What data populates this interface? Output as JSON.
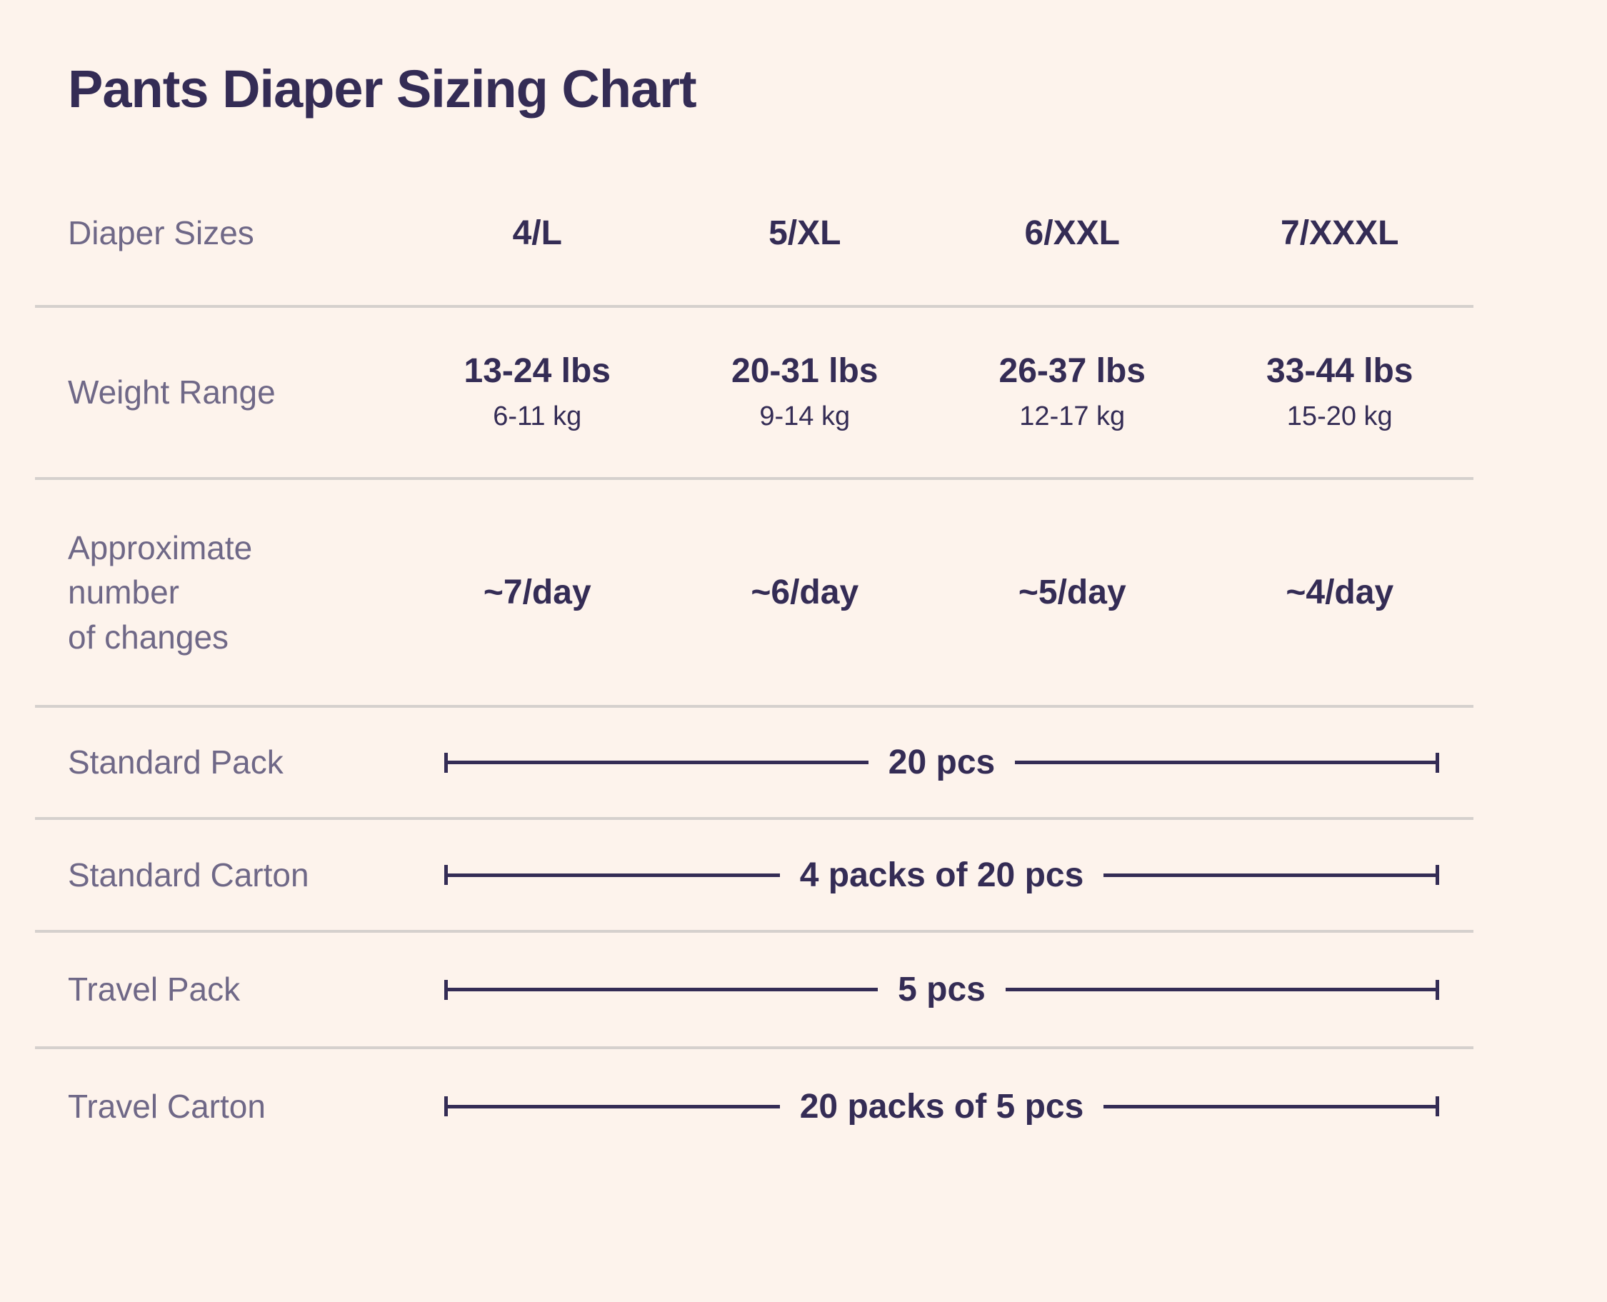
{
  "page": {
    "title": "Pants Diaper Sizing Chart"
  },
  "colors": {
    "background": "#FDF3EC",
    "primary_text": "#342C55",
    "label_text": "#6F6887",
    "divider": "#D5D0CD",
    "dimension_line": "#342C55"
  },
  "chart_data": {
    "type": "table",
    "title": "Pants Diaper Sizing Chart",
    "header_label": "Diaper Sizes",
    "columns": [
      "4/L",
      "5/XL",
      "6/XXL",
      "7/XXXL"
    ],
    "rows": [
      {
        "label": "Weight Range",
        "values_lbs": [
          "13-24 lbs",
          "20-31 lbs",
          "26-37 lbs",
          "33-44 lbs"
        ],
        "values_kg": [
          "6-11 kg",
          "9-14 kg",
          "12-17 kg",
          "15-20 kg"
        ]
      },
      {
        "label": "Approximate number of changes",
        "label_display": "Approximate\nnumber\nof changes",
        "values": [
          "~7/day",
          "~6/day",
          "~5/day",
          "~4/day"
        ]
      },
      {
        "label": "Standard Pack",
        "value_all_sizes": "20 pcs"
      },
      {
        "label": "Standard Carton",
        "value_all_sizes": "4 packs of 20 pcs"
      },
      {
        "label": "Travel Pack",
        "value_all_sizes": "5 pcs"
      },
      {
        "label": "Travel Carton",
        "value_all_sizes": "20 packs of 5 pcs"
      }
    ],
    "layout": {
      "grid": "off",
      "legend": "none",
      "notes": "pack rows use bracketed dimension lines spanning all four size columns"
    }
  }
}
